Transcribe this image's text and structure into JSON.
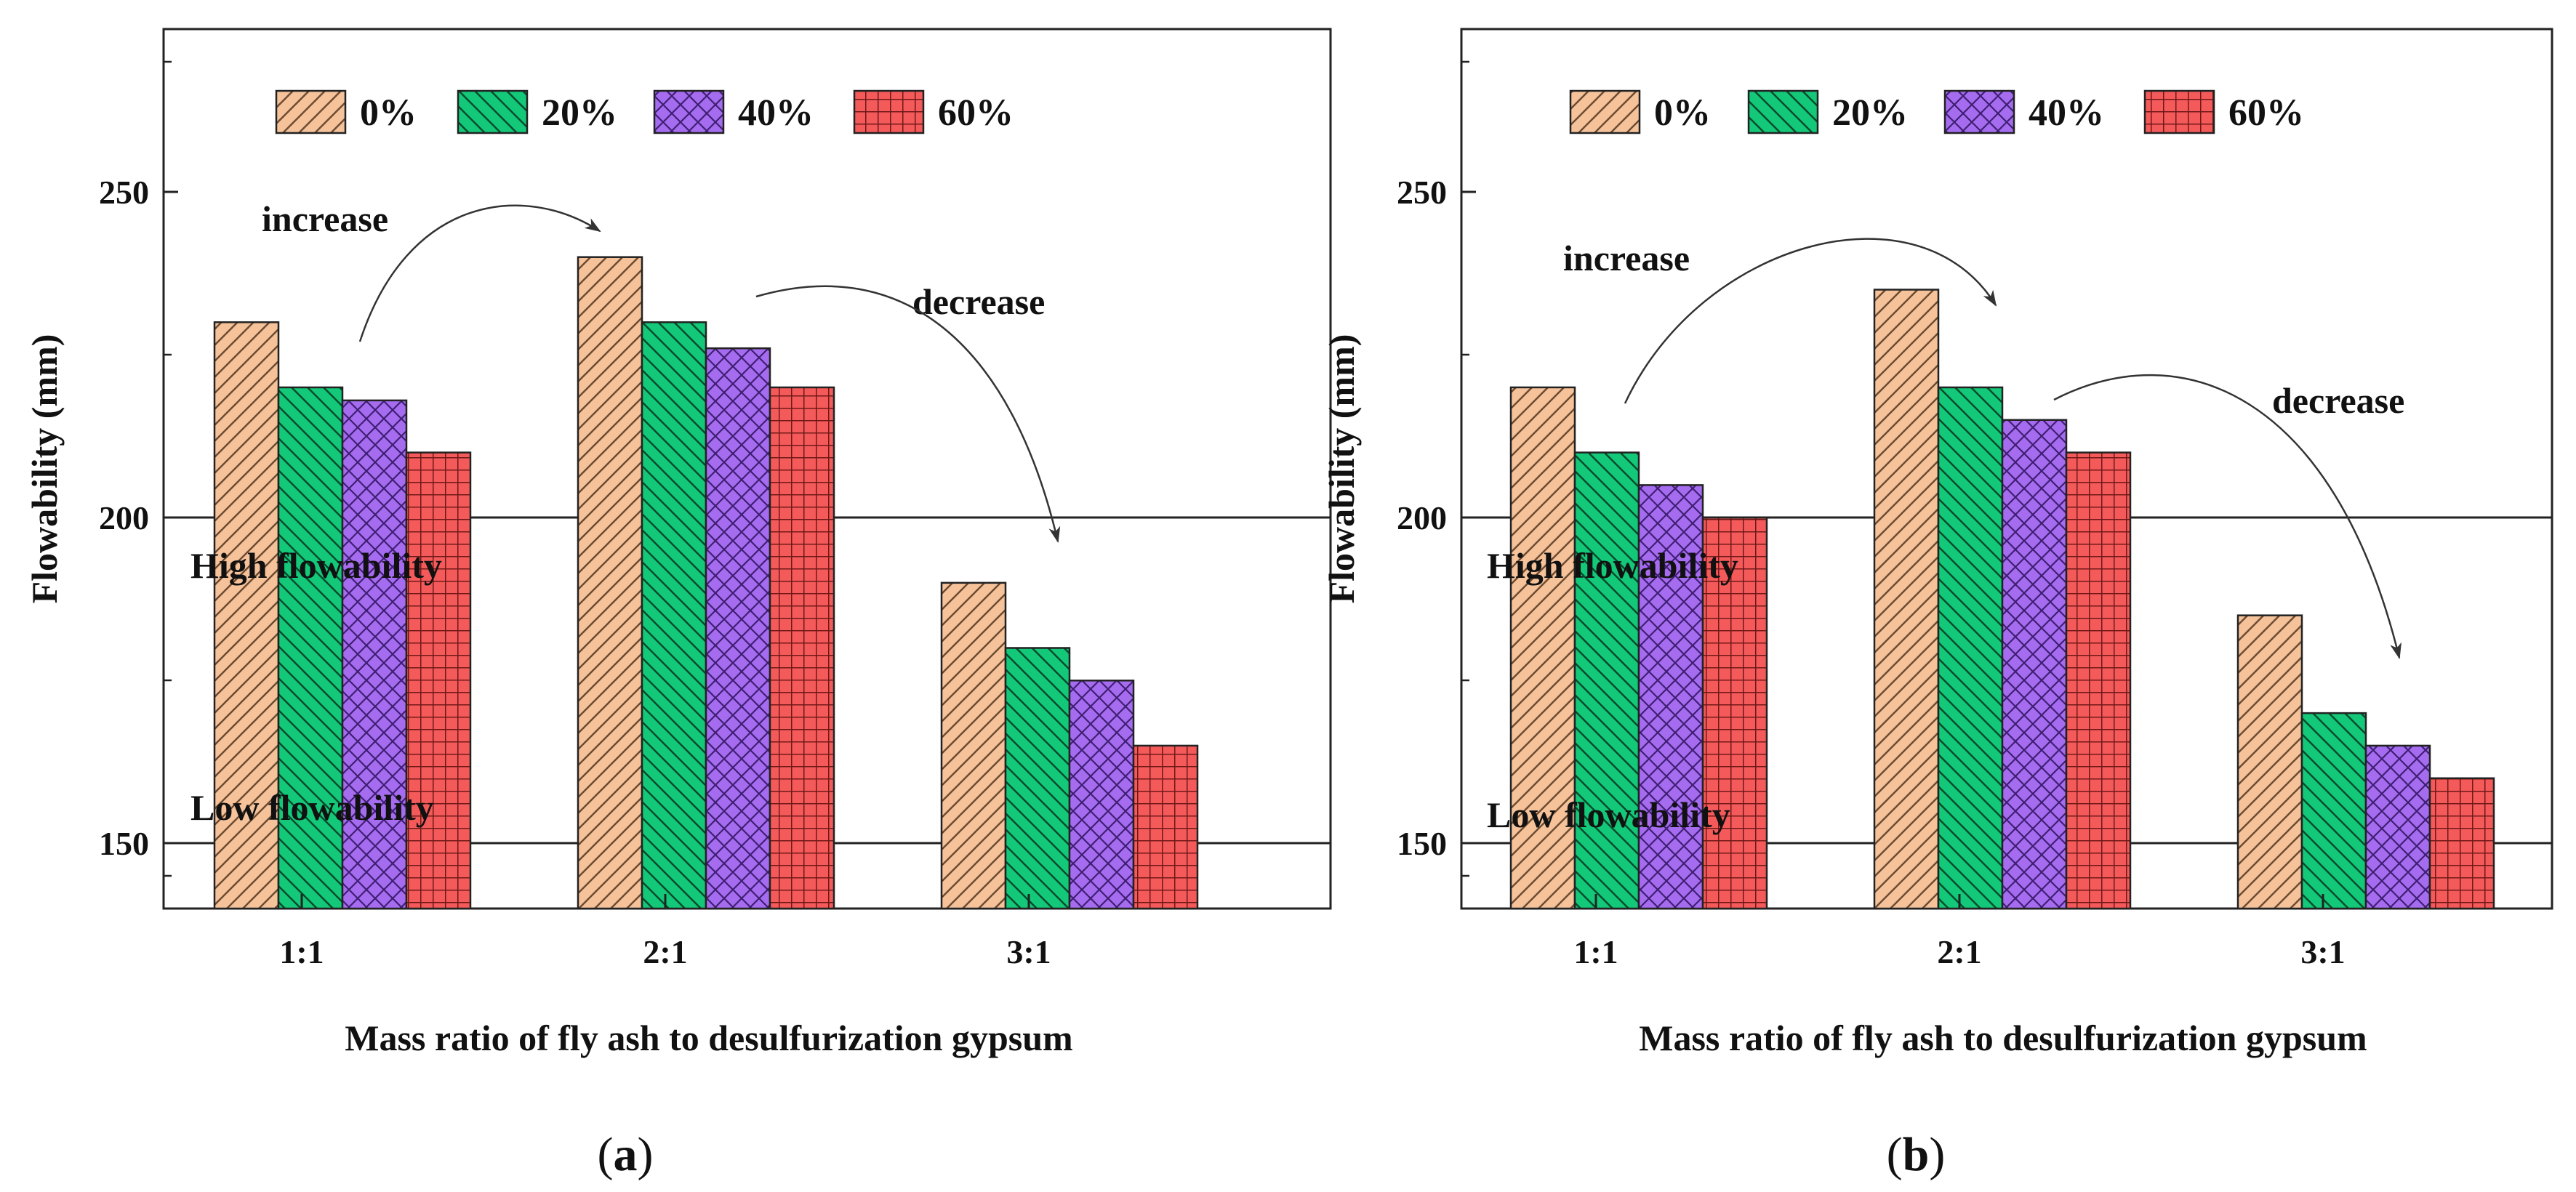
{
  "chart_data": [
    {
      "type": "bar",
      "panel_label": "(a)",
      "panel_letter": "a",
      "xlabel": "Mass ratio of fly ash to desulfurization gypsum",
      "ylabel": "Flowability (mm)",
      "categories": [
        "1:1",
        "2:1",
        "3:1"
      ],
      "ylim": [
        140,
        275
      ],
      "yticks": [
        150,
        200,
        250
      ],
      "legend_position": "top",
      "series": [
        {
          "name": "0%",
          "values": [
            230,
            240,
            190
          ]
        },
        {
          "name": "20%",
          "values": [
            220,
            230,
            180
          ]
        },
        {
          "name": "40%",
          "values": [
            218,
            226,
            175
          ]
        },
        {
          "name": "60%",
          "values": [
            210,
            220,
            165
          ]
        }
      ],
      "reference_lines": [
        {
          "value": 200,
          "label": "High flowability"
        },
        {
          "value": 150,
          "label": "Low flowability"
        }
      ],
      "annotations": [
        {
          "text": "increase",
          "from_category": "1:1",
          "to_category": "2:1"
        },
        {
          "text": "decrease",
          "from_category": "2:1",
          "to_category": "3:1"
        }
      ]
    },
    {
      "type": "bar",
      "panel_label": "(b)",
      "panel_letter": "b",
      "xlabel": "Mass ratio of fly ash to desulfurization gypsum",
      "ylabel": "Flowability (mm)",
      "categories": [
        "1:1",
        "2:1",
        "3:1"
      ],
      "ylim": [
        140,
        275
      ],
      "yticks": [
        150,
        200,
        250
      ],
      "legend_position": "top",
      "series": [
        {
          "name": "0%",
          "values": [
            220,
            235,
            185
          ]
        },
        {
          "name": "20%",
          "values": [
            210,
            220,
            170
          ]
        },
        {
          "name": "40%",
          "values": [
            205,
            215,
            165
          ]
        },
        {
          "name": "60%",
          "values": [
            200,
            210,
            160
          ]
        }
      ],
      "reference_lines": [
        {
          "value": 200,
          "label": "High flowability"
        },
        {
          "value": 150,
          "label": "Low flowability"
        }
      ],
      "annotations": [
        {
          "text": "increase",
          "from_category": "1:1",
          "to_category": "2:1"
        },
        {
          "text": "decrease",
          "from_category": "2:1",
          "to_category": "3:1"
        }
      ]
    }
  ],
  "colors": {
    "series": [
      "#f5c29a",
      "#13c878",
      "#a66cf0",
      "#f45a5a"
    ],
    "stroke": "#222222",
    "hatch": [
      "#6b4a30",
      "#064a2c",
      "#3f1f73",
      "#701818"
    ]
  }
}
